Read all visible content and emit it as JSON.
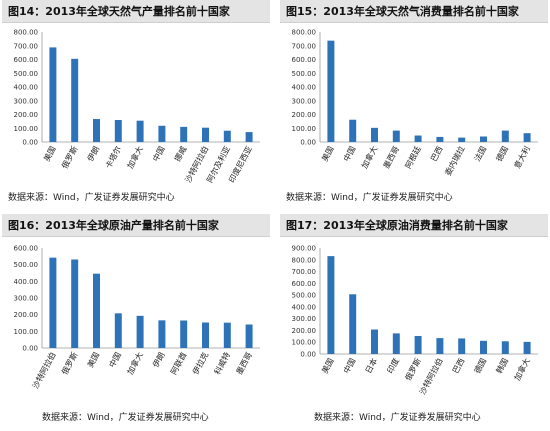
{
  "colors": {
    "bar": "#2e72b7",
    "title_bg": "#e4e4e4"
  },
  "chart_data": [
    {
      "type": "bar",
      "title": "图14：2013年全球天然气产量排名前十国家",
      "source": "数据来源：Wind，广发证券发展研究中心",
      "categories": [
        "美国",
        "俄罗斯",
        "伊朗",
        "卡塔尔",
        "加拿大",
        "中国",
        "挪威",
        "沙特阿拉伯",
        "阿尔及利亚",
        "印度尼西亚"
      ],
      "values": [
        688,
        605,
        167,
        160,
        155,
        118,
        110,
        104,
        82,
        72
      ],
      "yticks": [
        "0.00",
        "100.00",
        "200.00",
        "300.00",
        "400.00",
        "500.00",
        "600.00",
        "700.00",
        "800.00"
      ],
      "ylim": [
        0,
        800
      ]
    },
    {
      "type": "bar",
      "title": "图15：2013年全球天然气消费量排名前十国家",
      "source": "数据来源：Wind，广发证券发展研究中心",
      "categories": [
        "美国",
        "中国",
        "加拿大",
        "墨西哥",
        "阿根廷",
        "巴西",
        "委内瑞拉",
        "法国",
        "德国",
        "意大利"
      ],
      "values": [
        737,
        162,
        103,
        83,
        47,
        37,
        32,
        40,
        83,
        64
      ],
      "yticks": [
        "0.00",
        "100.00",
        "200.00",
        "300.00",
        "400.00",
        "500.00",
        "600.00",
        "700.00",
        "800.00"
      ],
      "ylim": [
        0,
        800
      ]
    },
    {
      "type": "bar",
      "title": "图16：2013年全球原油产量排名前十国家",
      "source": "数据来源：Wind，广发证券发展研究中心",
      "categories": [
        "沙特阿拉伯",
        "俄罗斯",
        "美国",
        "中国",
        "加拿大",
        "伊朗",
        "阿联酋",
        "伊拉克",
        "科威特",
        "墨西哥"
      ],
      "values": [
        542,
        531,
        446,
        208,
        193,
        166,
        165,
        153,
        152,
        141
      ],
      "yticks": [
        "0.00",
        "100.00",
        "200.00",
        "300.00",
        "400.00",
        "500.00",
        "600.00"
      ],
      "ylim": [
        0,
        600
      ]
    },
    {
      "type": "bar",
      "title": "图17：2013年全球原油消费量排名前十国家",
      "source": "数据来源：Wind，广发证券发展研究中心",
      "categories": [
        "美国",
        "中国",
        "日本",
        "印度",
        "俄罗斯",
        "沙特阿拉伯",
        "巴西",
        "德国",
        "韩国",
        "加拿大"
      ],
      "values": [
        831,
        507,
        208,
        175,
        153,
        135,
        132,
        112,
        108,
        103
      ],
      "yticks": [
        "0.00",
        "100.00",
        "200.00",
        "300.00",
        "400.00",
        "500.00",
        "600.00",
        "700.00",
        "800.00",
        "900.00"
      ],
      "ylim": [
        0,
        900
      ]
    }
  ]
}
